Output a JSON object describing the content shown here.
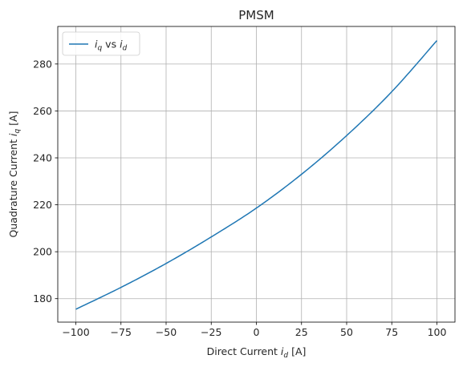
{
  "chart_data": {
    "type": "line",
    "title": "PMSM",
    "xlabel": "Direct Current i_d  [A]",
    "ylabel": "Quadrature Current i_q  [A]",
    "xlim": [
      -110,
      110
    ],
    "ylim": [
      170,
      296
    ],
    "xticks": [
      -100,
      -75,
      -50,
      -25,
      0,
      25,
      50,
      75,
      100
    ],
    "xtick_labels": [
      "−100",
      "−75",
      "−50",
      "−25",
      "0",
      "25",
      "50",
      "75",
      "100"
    ],
    "yticks": [
      180,
      200,
      220,
      240,
      260,
      280
    ],
    "ytick_labels": [
      "180",
      "200",
      "220",
      "240",
      "260",
      "280"
    ],
    "grid": true,
    "legend_position": "upper-left",
    "series": [
      {
        "name": "i_q vs i_d",
        "color": "#1f77b4",
        "x": [
          -100,
          -75,
          -50,
          -25,
          0,
          25,
          50,
          75,
          100
        ],
        "y": [
          175.5,
          184.8,
          195.0,
          206.3,
          218.6,
          233.0,
          249.5,
          268.2,
          290.0
        ]
      }
    ]
  }
}
